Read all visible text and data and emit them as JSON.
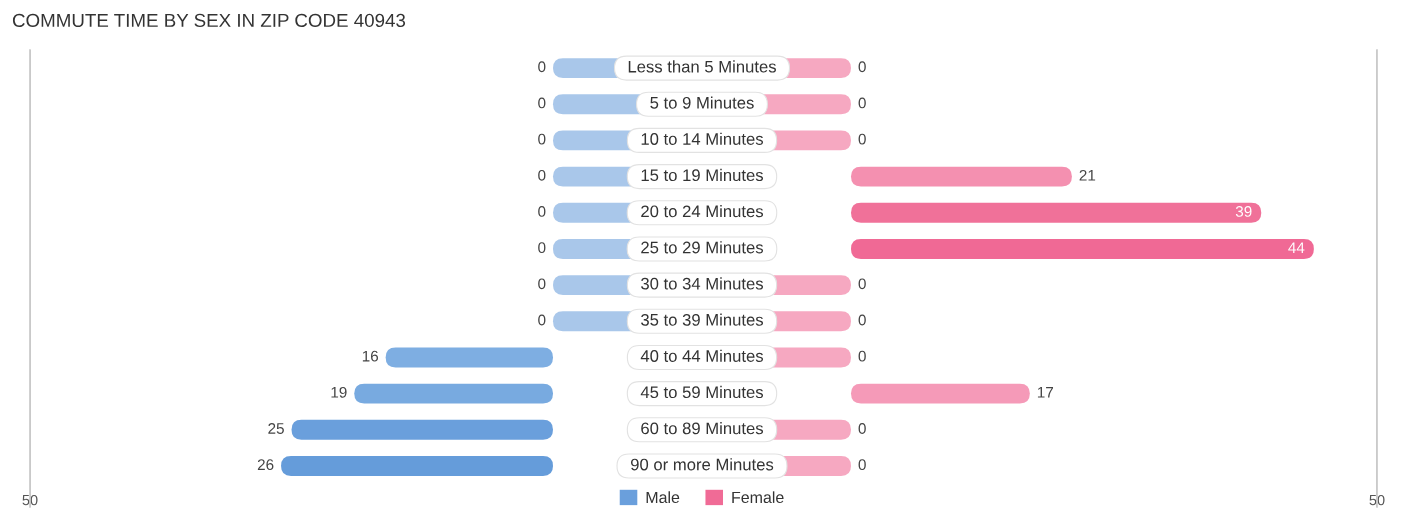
{
  "chart_data": [
    {
      "type": "bar",
      "orientation": "horizontal",
      "title": "COMMUTE TIME BY SEX IN ZIP CODE 40943",
      "categories": [
        "Less than 5 Minutes",
        "5 to 9 Minutes",
        "10 to 14 Minutes",
        "15 to 19 Minutes",
        "20 to 24 Minutes",
        "25 to 29 Minutes",
        "30 to 34 Minutes",
        "35 to 39 Minutes",
        "40 to 44 Minutes",
        "45 to 59 Minutes",
        "60 to 89 Minutes",
        "90 or more Minutes"
      ],
      "series": [
        {
          "name": "Male",
          "color": "#6a9fdc",
          "colors": [
            "#a9c7ea",
            "#a9c7ea",
            "#a9c7ea",
            "#a9c7ea",
            "#a9c7ea",
            "#a9c7ea",
            "#a9c7ea",
            "#a9c7ea",
            "#7eaee2",
            "#78aae0",
            "#6a9fdc",
            "#659cda"
          ],
          "values": [
            0,
            0,
            0,
            0,
            0,
            0,
            0,
            0,
            16,
            19,
            25,
            26
          ]
        }
      ],
      "xlim": [
        50,
        0
      ],
      "xticks": [
        50
      ],
      "data_labels": true,
      "legend": "bottom"
    },
    {
      "type": "bar",
      "orientation": "horizontal",
      "categories": [
        null,
        null,
        null,
        null,
        null,
        null,
        null,
        null,
        null,
        null,
        null,
        null
      ],
      "series": [
        {
          "name": "Female",
          "color": "#f06b96",
          "colors": [
            "#f6a8c1",
            "#f6a8c1",
            "#f6a8c1",
            "#f490b0",
            "#f07199",
            "#f06995",
            "#f6a8c1",
            "#f6a8c1",
            "#f6a8c1",
            "#f59ab8",
            "#f6a8c1",
            "#f6a8c1"
          ],
          "values": [
            0,
            0,
            0,
            21,
            39,
            44,
            0,
            0,
            0,
            17,
            0,
            0
          ]
        }
      ],
      "xlim": [
        0,
        50
      ],
      "xticks": [
        50
      ],
      "data_labels": true,
      "legend": "bottom",
      "tick_labels": "x"
    }
  ]
}
